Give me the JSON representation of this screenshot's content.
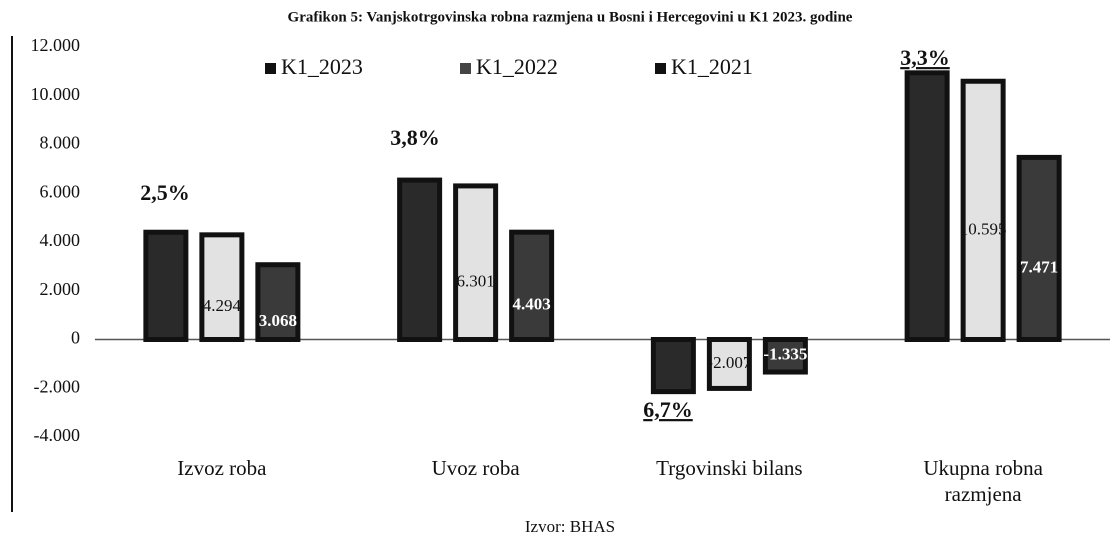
{
  "chart_data": {
    "type": "bar",
    "title": "Grafikon 5: Vanjskotrgovinska robna razmjena u Bosni i Hercegovini u K1 2023. godine",
    "categories": [
      "Izvoz roba",
      "Uvoz roba",
      "Trgovinski bilans",
      "Ukupna robna razmjena"
    ],
    "series": [
      {
        "name": "K1_2023",
        "color": "#2a2a2a",
        "values": [
          4401,
          6540,
          -2139,
          10941
        ]
      },
      {
        "name": "K1_2022",
        "color": "#e2e2e2",
        "values": [
          4294,
          6301,
          -2007,
          10595
        ],
        "value_labels": [
          "4.294",
          "6.301",
          "-2.007",
          "10.595"
        ]
      },
      {
        "name": "K1_2021",
        "color": "#3a3a3a",
        "values": [
          3068,
          4403,
          -1335,
          7471
        ],
        "value_labels": [
          "3.068",
          "4.403",
          "-1.335",
          "7.471"
        ]
      }
    ],
    "ylim": [
      -4000,
      12000
    ],
    "yticks": [
      {
        "value": 12000,
        "label": "12.000"
      },
      {
        "value": 10000,
        "label": "10.000"
      },
      {
        "value": 8000,
        "label": "8.000"
      },
      {
        "value": 6000,
        "label": "6.000"
      },
      {
        "value": 4000,
        "label": "4.000"
      },
      {
        "value": 2000,
        "label": "2.000"
      },
      0,
      {
        "value": -2000,
        "label": "-2.000"
      },
      {
        "value": -4000,
        "label": "-4.000"
      }
    ],
    "annotations": [
      "2,5%",
      "3,8%",
      "6,7%",
      "3,3%"
    ],
    "source": "Izvor: BHAS",
    "legend": "top"
  }
}
